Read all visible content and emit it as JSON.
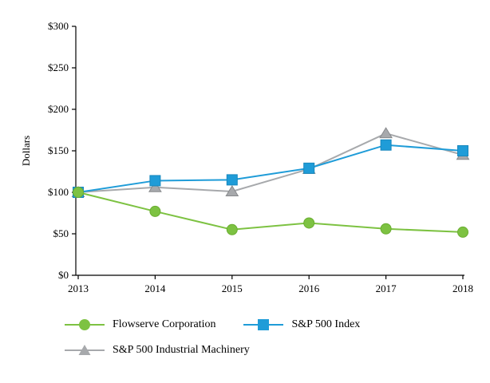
{
  "chart_data": {
    "type": "line",
    "title": "",
    "xlabel": "",
    "ylabel": "Dollars",
    "ylim": [
      0,
      300
    ],
    "ytick_step": 50,
    "ytick_labels": [
      "$0",
      "$50",
      "$100",
      "$150",
      "$200",
      "$250",
      "$300"
    ],
    "categories": [
      "2013",
      "2014",
      "2015",
      "2016",
      "2017",
      "2018"
    ],
    "grid": false,
    "legend_position": "bottom",
    "axis_color": "#000000",
    "series": [
      {
        "name": "Flowserve Corporation",
        "marker": "circle",
        "color": "#7dc242",
        "edge": "#6aae31",
        "values": [
          100,
          77,
          55,
          63,
          56,
          52
        ]
      },
      {
        "name": "S&P 500 Index",
        "marker": "square",
        "color": "#1f9cd8",
        "edge": "#1787bd",
        "values": [
          100,
          114,
          115,
          129,
          157,
          150
        ]
      },
      {
        "name": "S&P 500 Industrial Machinery",
        "marker": "triangle",
        "color": "#a7a9ac",
        "edge": "#87898c",
        "values": [
          100,
          106,
          101,
          128,
          171,
          145
        ]
      }
    ]
  }
}
